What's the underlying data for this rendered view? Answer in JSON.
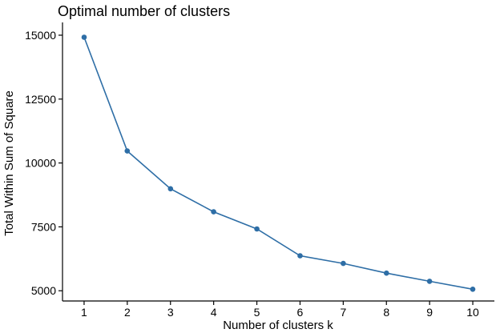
{
  "chart_data": {
    "type": "line",
    "title": "Optimal number of clusters",
    "xlabel": "Number of clusters k",
    "ylabel": "Total Within Sum of Square",
    "x": [
      1,
      2,
      3,
      4,
      5,
      6,
      7,
      8,
      9,
      10
    ],
    "series": [
      {
        "values": [
          14920,
          10470,
          8990,
          8090,
          7420,
          6370,
          6070,
          5690,
          5370,
          5060
        ]
      }
    ],
    "x_ticks": [
      "1",
      "2",
      "3",
      "4",
      "5",
      "6",
      "7",
      "8",
      "9",
      "10"
    ],
    "y_ticks": [
      "5000",
      "7500",
      "10000",
      "12500",
      "15000"
    ],
    "xlim": [
      0.5,
      10.5
    ],
    "ylim": [
      4600,
      15500
    ],
    "grid": false,
    "legend": "none",
    "colors": {
      "series": "#2E6EA6",
      "axis": "#000000"
    }
  }
}
